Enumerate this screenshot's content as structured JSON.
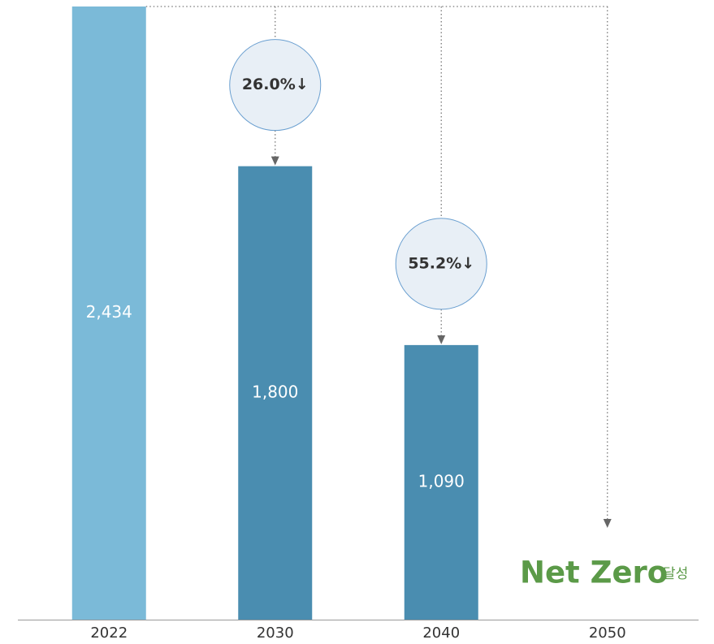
{
  "chart_data": {
    "type": "bar",
    "categories": [
      "2022",
      "2030",
      "2040",
      "2050"
    ],
    "values": [
      2434,
      1800,
      1090,
      null
    ],
    "value_labels": [
      "2,434",
      "1,800",
      "1,090",
      null
    ],
    "colors": [
      "#7bbad8",
      "#4a8db0",
      "#4a8db0",
      "#4a8db0"
    ],
    "annotations": [
      null,
      "26.0%↓",
      "55.2%↓",
      null
    ],
    "net_zero_label": "Net Zero",
    "net_zero_suffix": "달성",
    "net_zero_color": "#5b9a48"
  }
}
